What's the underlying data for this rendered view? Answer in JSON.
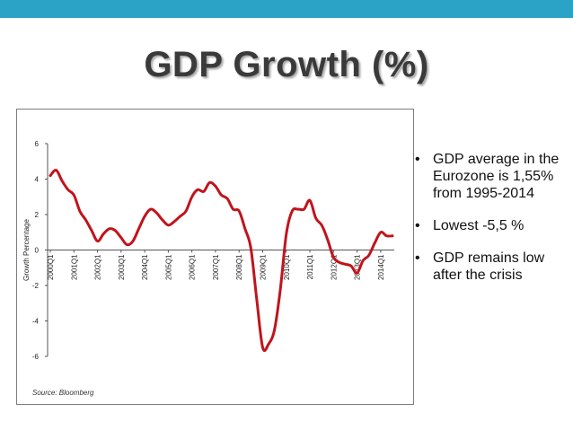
{
  "title": "GDP Growth (%)",
  "colors": {
    "top_bar": "#2aa3c7",
    "line": "#c0141c"
  },
  "bullets": [
    "GDP average in the Eurozone is 1,55% from 1995-2014",
    "Lowest -5,5 %",
    "GDP remains low after the crisis"
  ],
  "bullet_symbol": "•",
  "source": "Source: Bloomberg",
  "chart_data": {
    "type": "line",
    "title": "",
    "ylabel": "Growth Percentage",
    "xlabel": "",
    "ylim": [
      -6,
      6
    ],
    "yticks": [
      6,
      4,
      2,
      0,
      -2,
      -4,
      -6
    ],
    "xtick_labels": [
      "2000Q1",
      "2001Q1",
      "2002Q1",
      "2003Q1",
      "2004Q1",
      "2005Q1",
      "2006Q1",
      "2007Q1",
      "2008Q1",
      "2009Q1",
      "2010Q1",
      "2011Q1",
      "2012Q1",
      "2013Q1",
      "2014Q1"
    ],
    "grid": false,
    "legend": "none",
    "series": [
      {
        "x": [
          "2000Q1",
          "2000Q2",
          "2000Q3",
          "2000Q4",
          "2001Q1",
          "2001Q2",
          "2001Q3",
          "2001Q4",
          "2002Q1",
          "2002Q2",
          "2002Q3",
          "2002Q4",
          "2003Q1",
          "2003Q2",
          "2003Q3",
          "2003Q4",
          "2004Q1",
          "2004Q2",
          "2004Q3",
          "2004Q4",
          "2005Q1",
          "2005Q2",
          "2005Q3",
          "2005Q4",
          "2006Q1",
          "2006Q2",
          "2006Q3",
          "2006Q4",
          "2007Q1",
          "2007Q2",
          "2007Q3",
          "2007Q4",
          "2008Q1",
          "2008Q2",
          "2008Q3",
          "2008Q4",
          "2009Q1",
          "2009Q2",
          "2009Q3",
          "2009Q4",
          "2010Q1",
          "2010Q2",
          "2010Q3",
          "2010Q4",
          "2011Q1",
          "2011Q2",
          "2011Q3",
          "2011Q4",
          "2012Q1",
          "2012Q2",
          "2012Q3",
          "2012Q4",
          "2013Q1",
          "2013Q2",
          "2013Q3",
          "2013Q4",
          "2014Q1",
          "2014Q2",
          "2014Q3"
        ],
        "values": [
          4.2,
          4.5,
          3.9,
          3.4,
          3.1,
          2.2,
          1.7,
          1.1,
          0.5,
          0.9,
          1.2,
          1.1,
          0.7,
          0.3,
          0.5,
          1.2,
          1.9,
          2.3,
          2.1,
          1.7,
          1.4,
          1.6,
          1.9,
          2.2,
          3.0,
          3.4,
          3.3,
          3.8,
          3.6,
          3.1,
          2.9,
          2.3,
          2.2,
          1.2,
          0.1,
          -2.8,
          -5.5,
          -5.3,
          -4.5,
          -2.2,
          0.9,
          2.2,
          2.3,
          2.3,
          2.8,
          1.8,
          1.4,
          0.6,
          -0.4,
          -0.7,
          -0.8,
          -0.9,
          -1.3,
          -0.6,
          -0.3,
          0.4,
          1.0,
          0.8,
          0.8
        ]
      }
    ]
  }
}
